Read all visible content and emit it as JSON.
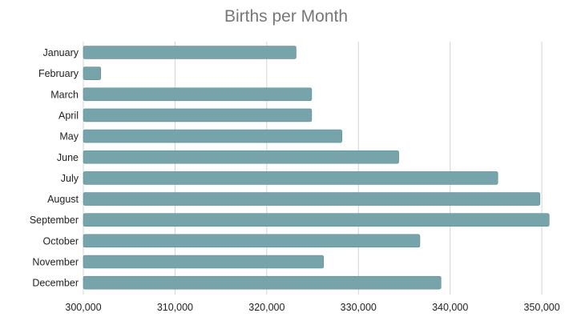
{
  "chart_data": {
    "type": "bar",
    "orientation": "horizontal",
    "title": "Births per Month",
    "xlabel": "",
    "ylabel": "",
    "categories": [
      "January",
      "February",
      "March",
      "April",
      "May",
      "June",
      "July",
      "August",
      "September",
      "October",
      "November",
      "December"
    ],
    "values": [
      323200,
      301900,
      324900,
      324900,
      328200,
      334400,
      345200,
      349800,
      350800,
      336700,
      326200,
      339000
    ],
    "xlim": [
      300000,
      352000
    ],
    "ticks": [
      300000,
      310000,
      320000,
      330000,
      340000,
      350000
    ],
    "tick_labels": [
      "300,000",
      "310,000",
      "320,000",
      "330,000",
      "340,000",
      "350,000"
    ],
    "grid": true,
    "bar_color": "#77a4ab",
    "bar_edge_color": "#5f8c93"
  }
}
